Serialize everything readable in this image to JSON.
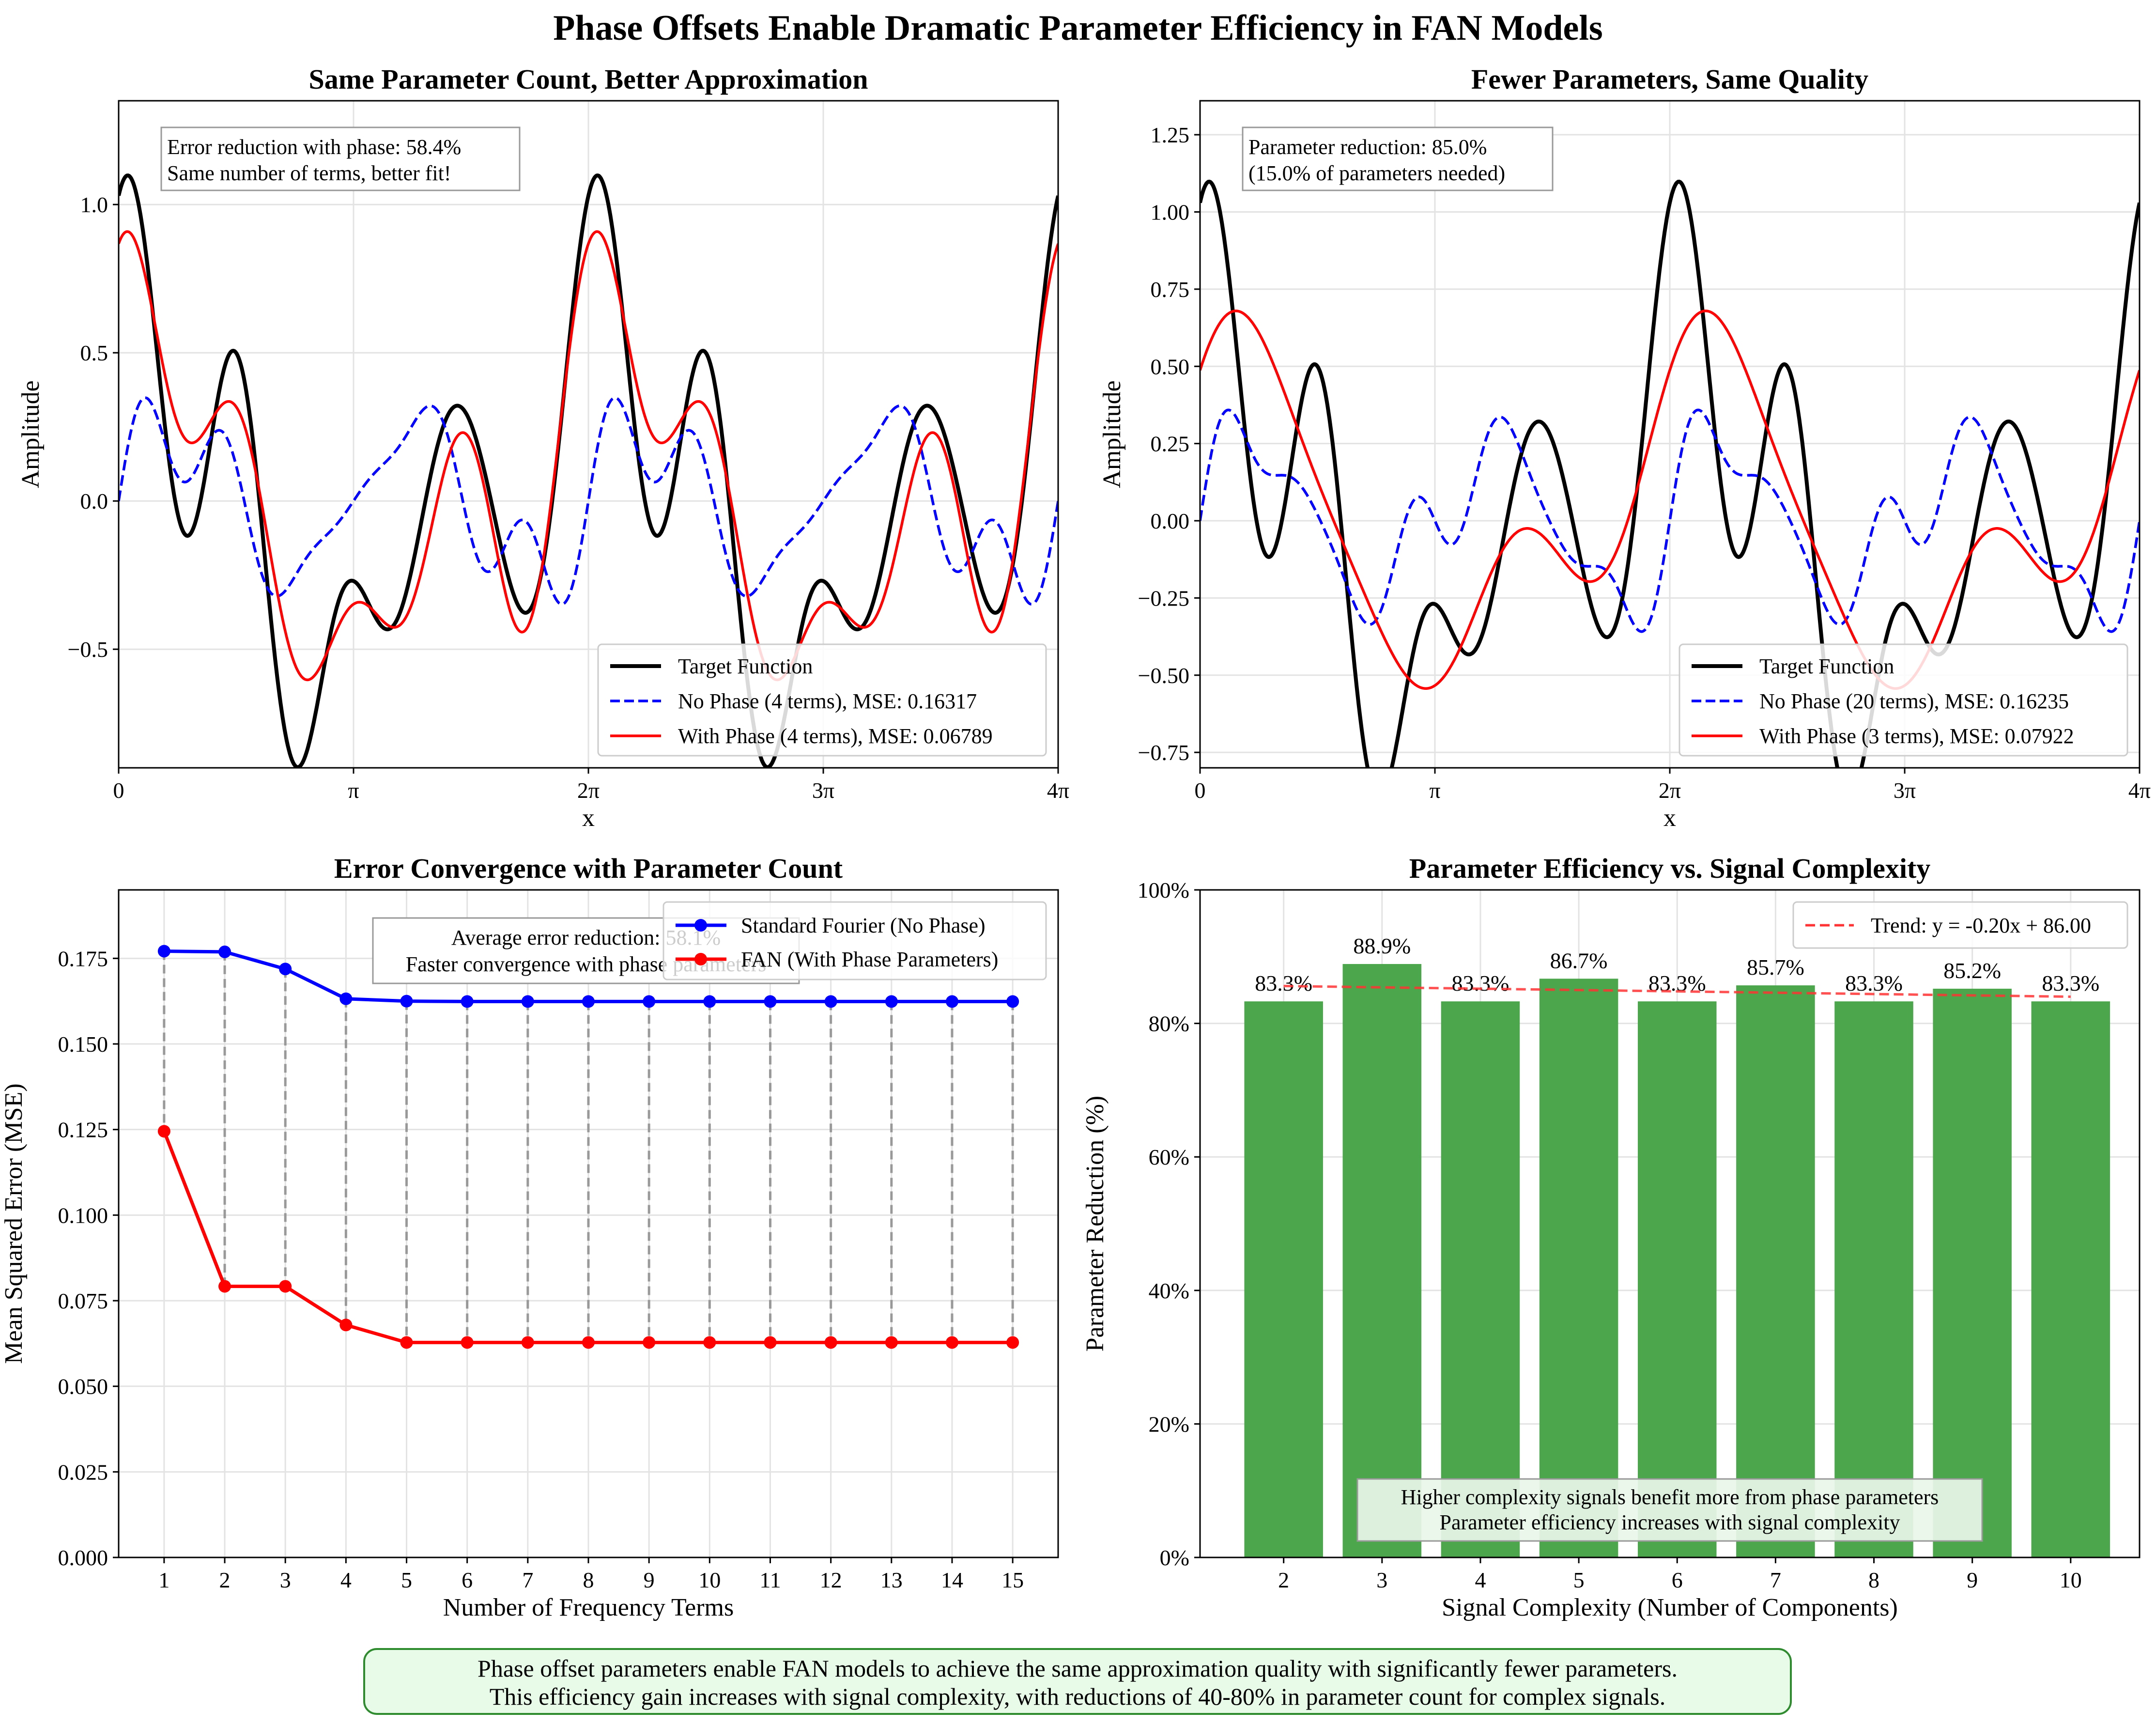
{
  "figure": {
    "title": "Phase Offsets Enable Dramatic Parameter Efficiency in FAN Models",
    "footer": [
      "Phase offset parameters enable FAN models to achieve the same approximation quality with significantly fewer parameters.",
      "This efficiency gain increases with signal complexity, with reductions of 40-80% in parameter count for complex signals."
    ],
    "colors": {
      "target": "#000000",
      "no_phase": "#0000ff",
      "with_phase": "#ff0000",
      "bars": "#4ca64c",
      "trend": "#ff3333",
      "stems": "#999999",
      "footer_bg": "#e8fbe8",
      "footer_border": "#2e8b2e"
    }
  },
  "chart_data": [
    {
      "type": "line",
      "title": "Same Parameter Count, Better Approximation",
      "xlabel": "x",
      "ylabel": "Amplitude",
      "xlim": [
        0,
        12.566
      ],
      "ylim": [
        -0.9,
        1.35
      ],
      "xticks": [
        0,
        3.1416,
        6.2832,
        9.4248,
        12.566
      ],
      "xtick_labels": [
        "0",
        "π",
        "2π",
        "3π",
        "4π"
      ],
      "yticks": [
        -0.5,
        0,
        0.5,
        1.0
      ],
      "ytick_labels": [
        "−0.5",
        "0.0",
        "0.5",
        "1.0"
      ],
      "grid": true,
      "annotation": [
        "Error reduction with phase: 58.4%",
        "Same number of terms, better fit!"
      ],
      "legend_position": "lower-right",
      "series": [
        {
          "name": "Target Function",
          "style": "solid",
          "color": "#000000",
          "function": "target"
        },
        {
          "name": "No Phase (4 terms), MSE: 0.16317",
          "style": "dashed",
          "color": "#0000ff",
          "function": "nophase4"
        },
        {
          "name": "With Phase (4 terms), MSE: 0.06789",
          "style": "solid",
          "color": "#ff0000",
          "function": "phase4"
        }
      ]
    },
    {
      "type": "line",
      "title": "Fewer Parameters, Same Quality",
      "xlabel": "x",
      "ylabel": "Amplitude",
      "xlim": [
        0,
        12.566
      ],
      "ylim": [
        -0.8,
        1.36
      ],
      "xticks": [
        0,
        3.1416,
        6.2832,
        9.4248,
        12.566
      ],
      "xtick_labels": [
        "0",
        "π",
        "2π",
        "3π",
        "4π"
      ],
      "yticks": [
        -0.75,
        -0.5,
        -0.25,
        0,
        0.25,
        0.5,
        0.75,
        1.0,
        1.25
      ],
      "ytick_labels": [
        "−0.75",
        "−0.50",
        "−0.25",
        "0.00",
        "0.25",
        "0.50",
        "0.75",
        "1.00",
        "1.25"
      ],
      "grid": true,
      "annotation": [
        "Parameter reduction: 85.0%",
        "(15.0% of parameters needed)"
      ],
      "legend_position": "lower-right",
      "series": [
        {
          "name": "Target Function",
          "style": "solid",
          "color": "#000000",
          "function": "target"
        },
        {
          "name": "No Phase (20 terms), MSE: 0.16235",
          "style": "dashed",
          "color": "#0000ff",
          "function": "nophase20"
        },
        {
          "name": "With Phase (3 terms), MSE: 0.07922",
          "style": "solid",
          "color": "#ff0000",
          "function": "phase3"
        }
      ]
    },
    {
      "type": "line",
      "title": "Error Convergence with Parameter Count",
      "xlabel": "Number of Frequency Terms",
      "ylabel": "Mean Squared Error (MSE)",
      "xlim": [
        0.25,
        15.75
      ],
      "ylim": [
        0,
        0.195
      ],
      "x": [
        1,
        2,
        3,
        4,
        5,
        6,
        7,
        8,
        9,
        10,
        11,
        12,
        13,
        14,
        15
      ],
      "xtick_labels": [
        "1",
        "2",
        "3",
        "4",
        "5",
        "6",
        "7",
        "8",
        "9",
        "10",
        "11",
        "12",
        "13",
        "14",
        "15"
      ],
      "yticks": [
        0,
        0.025,
        0.05,
        0.075,
        0.1,
        0.125,
        0.15,
        0.175
      ],
      "ytick_labels": [
        "0.000",
        "0.025",
        "0.050",
        "0.075",
        "0.100",
        "0.125",
        "0.150",
        "0.175"
      ],
      "grid": true,
      "annotation": [
        "Average error reduction: 58.1%",
        "Faster convergence with phase parameters"
      ],
      "legend_position": "top-right",
      "series": [
        {
          "name": "Standard Fourier (No Phase)",
          "color": "#0000ff",
          "values": [
            0.1771,
            0.1769,
            0.1719,
            0.1632,
            0.1625,
            0.1624,
            0.1624,
            0.1624,
            0.1624,
            0.1624,
            0.1624,
            0.1624,
            0.1624,
            0.1624,
            0.1624
          ]
        },
        {
          "name": "FAN (With Phase Parameters)",
          "color": "#ff0000",
          "values": [
            0.1245,
            0.0792,
            0.0792,
            0.0679,
            0.0628,
            0.0628,
            0.0628,
            0.0628,
            0.0628,
            0.0628,
            0.0628,
            0.0628,
            0.0628,
            0.0628,
            0.0628
          ]
        }
      ]
    },
    {
      "type": "bar",
      "title": "Parameter Efficiency vs. Signal Complexity",
      "xlabel": "Signal Complexity (Number of Components)",
      "ylabel": "Parameter Reduction (%)",
      "categories": [
        "2",
        "3",
        "4",
        "5",
        "6",
        "7",
        "8",
        "9",
        "10"
      ],
      "values": [
        83.3,
        88.9,
        83.3,
        86.7,
        83.3,
        85.7,
        83.3,
        85.2,
        83.3
      ],
      "value_labels": [
        "83.3%",
        "88.9%",
        "83.3%",
        "86.7%",
        "83.3%",
        "85.7%",
        "83.3%",
        "85.2%",
        "83.3%"
      ],
      "ylim": [
        0,
        100
      ],
      "yticks": [
        0,
        20,
        40,
        60,
        80,
        100
      ],
      "ytick_labels": [
        "0%",
        "20%",
        "40%",
        "60%",
        "80%",
        "100%"
      ],
      "grid": true,
      "trend": {
        "name": "Trend: y = -0.20x + 86.00",
        "slope": -0.2,
        "intercept": 86.0
      },
      "annotation": [
        "Higher complexity signals benefit more from phase parameters",
        "Parameter efficiency increases with signal complexity"
      ],
      "legend_position": "top-right"
    }
  ]
}
